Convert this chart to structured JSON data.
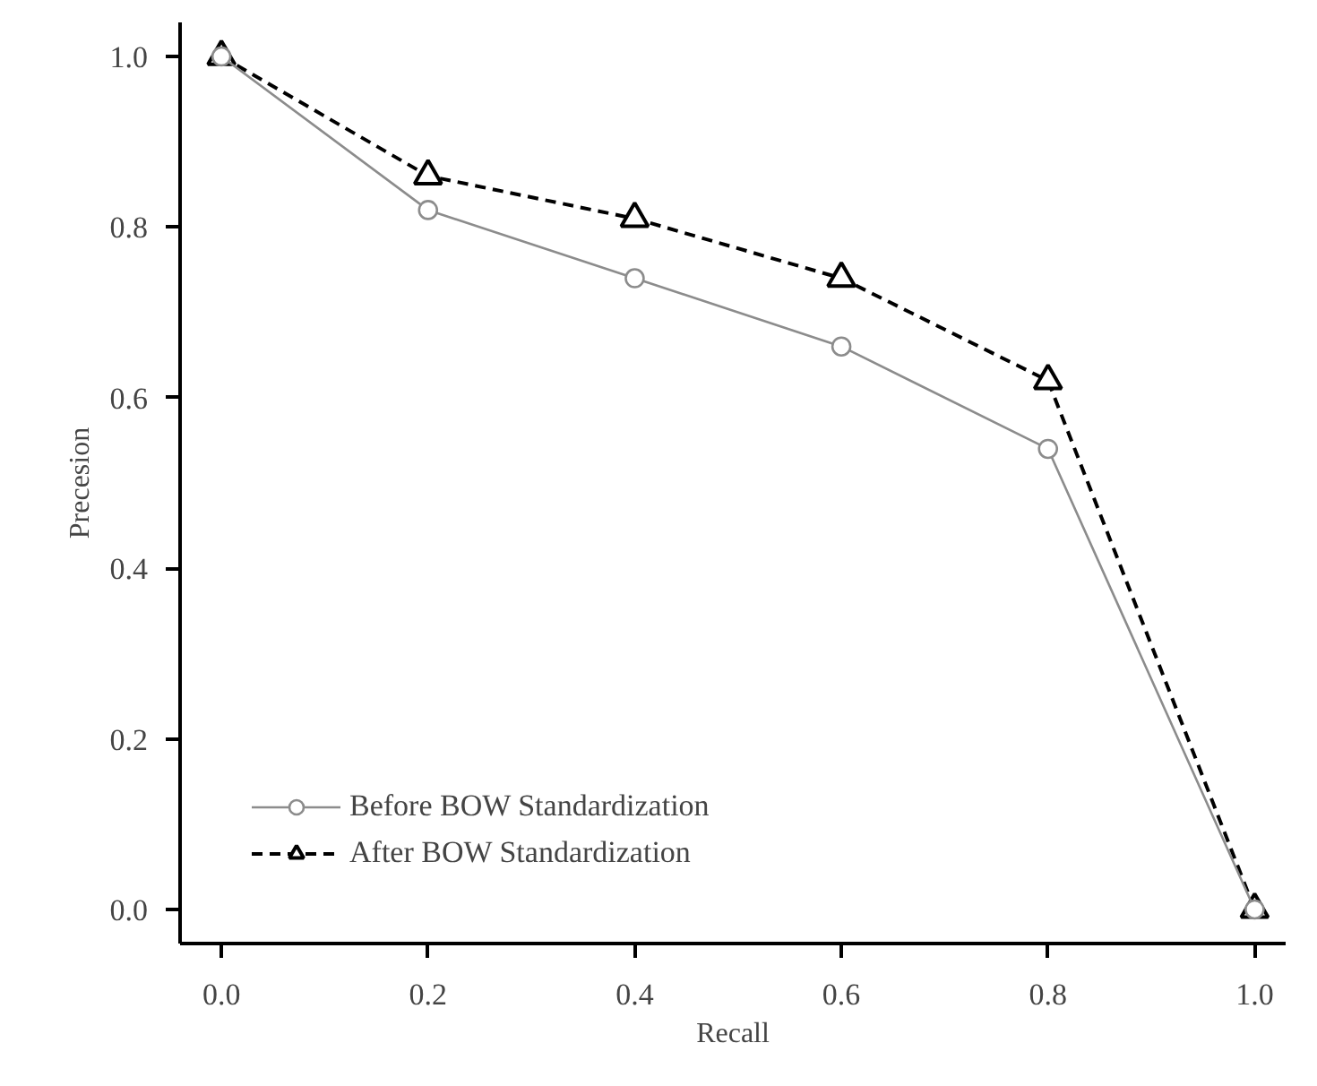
{
  "chart_data": {
    "type": "line",
    "xlabel": "Recall",
    "ylabel": "Precesion",
    "x": [
      0.0,
      0.2,
      0.4,
      0.6,
      0.8,
      1.0
    ],
    "series": [
      {
        "name": "Before BOW Standardization",
        "color": "#8c8c8c",
        "marker": "circle",
        "line_style": "solid",
        "values": [
          1.0,
          0.82,
          0.74,
          0.66,
          0.54,
          0.0
        ]
      },
      {
        "name": "After BOW Standardization",
        "color": "#000000",
        "marker": "triangle",
        "line_style": "dashed",
        "values": [
          1.0,
          0.86,
          0.81,
          0.74,
          0.62,
          0.0
        ]
      }
    ],
    "xlim": [
      -0.04,
      1.03
    ],
    "ylim": [
      -0.04,
      1.04
    ],
    "xticks": [
      {
        "value": 0.0,
        "label": "0.0"
      },
      0.2,
      0.4,
      0.6,
      0.8,
      {
        "value": 1.0,
        "label": "1.0"
      }
    ],
    "yticks": [
      {
        "value": 0.0,
        "label": "0.0"
      },
      0.2,
      0.4,
      0.6,
      0.8,
      {
        "value": 1.0,
        "label": "1.0"
      }
    ],
    "grid": false,
    "legend": "bottom left"
  }
}
